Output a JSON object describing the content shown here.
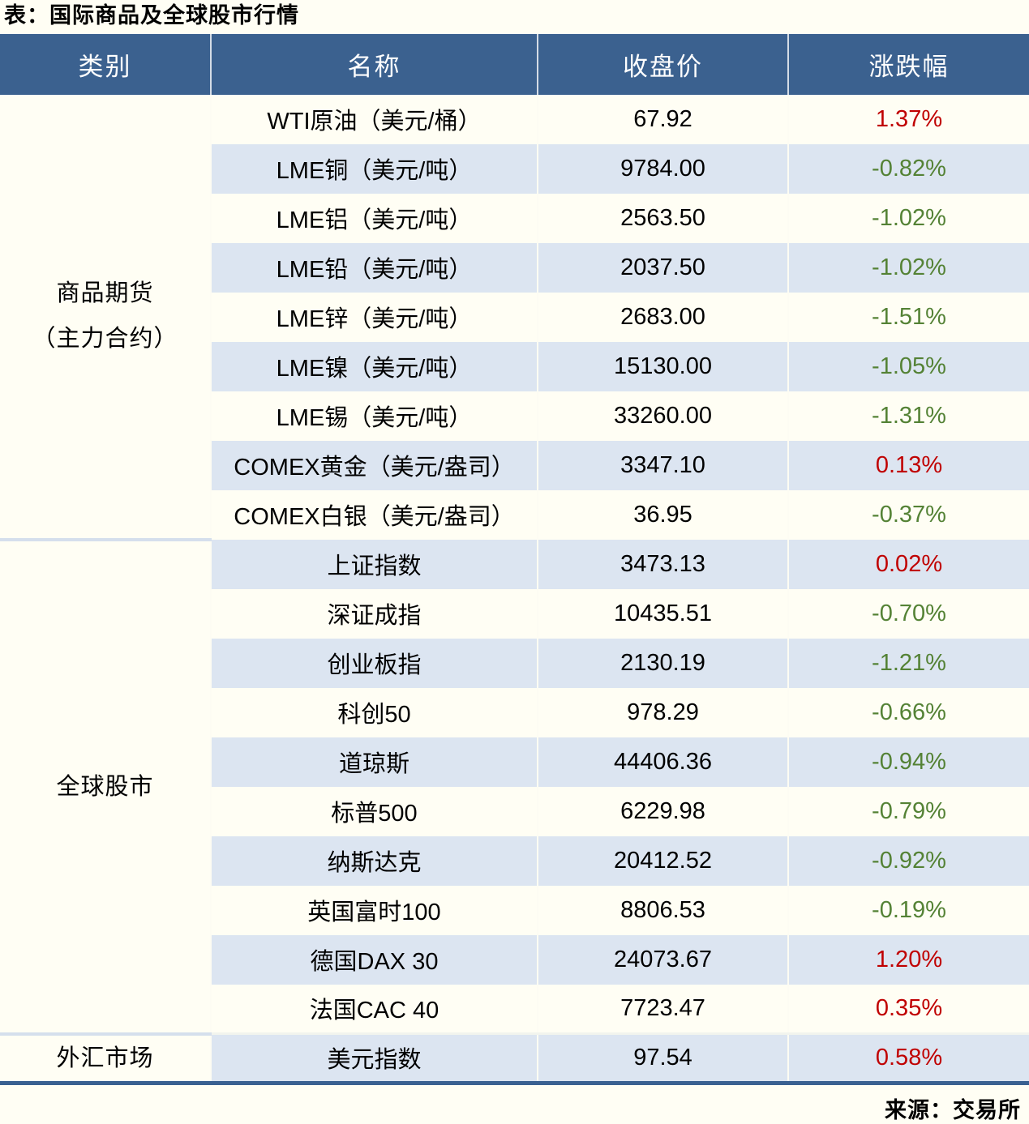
{
  "title": "表：国际商品及全球股市行情",
  "source": "来源：交易所",
  "colors": {
    "header_bg": "#3B618F",
    "row_alt_bg": "#DCE5F1",
    "page_bg": "#FFFEF4",
    "up_red": "#C00000",
    "down_green": "#548235",
    "bottom_border": "#3A6191",
    "section_divider": "#D5DFEC"
  },
  "chart_data": {
    "type": "table",
    "columns": [
      "类别",
      "名称",
      "收盘价",
      "涨跌幅"
    ],
    "sections": [
      {
        "category": "商品期货",
        "category_line2": "（主力合约）",
        "rows": [
          {
            "name": "WTI原油（美元/桶）",
            "close": "67.92",
            "change": "1.37%",
            "direction": "up"
          },
          {
            "name": "LME铜（美元/吨）",
            "close": "9784.00",
            "change": "-0.82%",
            "direction": "down"
          },
          {
            "name": "LME铝（美元/吨）",
            "close": "2563.50",
            "change": "-1.02%",
            "direction": "down"
          },
          {
            "name": "LME铅（美元/吨）",
            "close": "2037.50",
            "change": "-1.02%",
            "direction": "down"
          },
          {
            "name": "LME锌（美元/吨）",
            "close": "2683.00",
            "change": "-1.51%",
            "direction": "down"
          },
          {
            "name": "LME镍（美元/吨）",
            "close": "15130.00",
            "change": "-1.05%",
            "direction": "down"
          },
          {
            "name": "LME锡（美元/吨）",
            "close": "33260.00",
            "change": "-1.31%",
            "direction": "down"
          },
          {
            "name": "COMEX黄金（美元/盎司）",
            "close": "3347.10",
            "change": "0.13%",
            "direction": "up"
          },
          {
            "name": "COMEX白银（美元/盎司）",
            "close": "36.95",
            "change": "-0.37%",
            "direction": "down"
          }
        ]
      },
      {
        "category": "全球股市",
        "rows": [
          {
            "name": "上证指数",
            "close": "3473.13",
            "change": "0.02%",
            "direction": "up"
          },
          {
            "name": "深证成指",
            "close": "10435.51",
            "change": "-0.70%",
            "direction": "down"
          },
          {
            "name": "创业板指",
            "close": "2130.19",
            "change": "-1.21%",
            "direction": "down"
          },
          {
            "name": "科创50",
            "close": "978.29",
            "change": "-0.66%",
            "direction": "down"
          },
          {
            "name": "道琼斯",
            "close": "44406.36",
            "change": "-0.94%",
            "direction": "down"
          },
          {
            "name": "标普500",
            "close": "6229.98",
            "change": "-0.79%",
            "direction": "down"
          },
          {
            "name": "纳斯达克",
            "close": "20412.52",
            "change": "-0.92%",
            "direction": "down"
          },
          {
            "name": "英国富时100",
            "close": "8806.53",
            "change": "-0.19%",
            "direction": "down"
          },
          {
            "name": "德国DAX 30",
            "close": "24073.67",
            "change": "1.20%",
            "direction": "up"
          },
          {
            "name": "法国CAC 40",
            "close": "7723.47",
            "change": "0.35%",
            "direction": "up"
          }
        ]
      },
      {
        "category": "外汇市场",
        "rows": [
          {
            "name": "美元指数",
            "close": "97.54",
            "change": "0.58%",
            "direction": "up"
          }
        ]
      }
    ]
  }
}
